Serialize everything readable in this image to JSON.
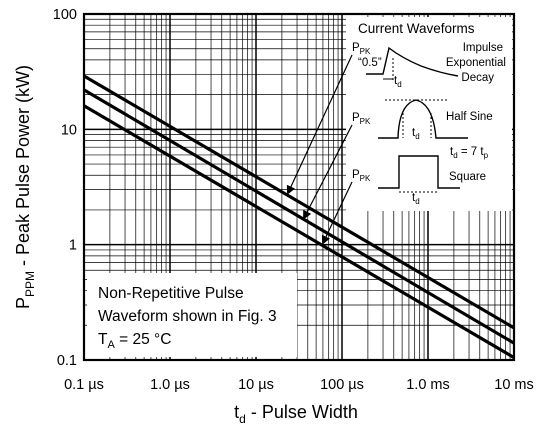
{
  "chart_data": {
    "type": "line",
    "xscale": "log",
    "yscale": "log",
    "xlim": [
      1e-07,
      0.01
    ],
    "ylim": [
      0.1,
      100
    ],
    "grid": true,
    "x_ticks": [
      {
        "value": 1e-07,
        "label": "0.1 µs"
      },
      {
        "value": 1e-06,
        "label": "1.0 µs"
      },
      {
        "value": 1e-05,
        "label": "10 µs"
      },
      {
        "value": 0.0001,
        "label": "100 µs"
      },
      {
        "value": 0.001,
        "label": "1.0 ms"
      },
      {
        "value": 0.01,
        "label": "10 ms"
      }
    ],
    "y_ticks": [
      {
        "value": 0.1,
        "label": "0.1"
      },
      {
        "value": 1,
        "label": "1"
      },
      {
        "value": 10,
        "label": "10"
      },
      {
        "value": 100,
        "label": "100"
      }
    ],
    "xlabel": {
      "main": "t",
      "sub": "d",
      "rest": " - Pulse Width"
    },
    "ylabel": {
      "main": "P",
      "sub": "PPM",
      "rest": " - Peak Pulse Power (kW)"
    },
    "series": [
      {
        "x": [
          1e-07,
          0.01
        ],
        "y": [
          29,
          0.19
        ]
      },
      {
        "x": [
          1e-07,
          0.01
        ],
        "y": [
          22,
          0.14
        ]
      },
      {
        "x": [
          1e-07,
          0.01
        ],
        "y": [
          16,
          0.105
        ]
      }
    ],
    "annotation_box": {
      "line1": "Non-Repetitive Pulse",
      "line2": "Waveform shown in Fig. 3",
      "ta_main": "T",
      "ta_sub": "A",
      "ta_rest": " = 25 °C"
    },
    "inset": {
      "title": "Current Waveforms",
      "ppk_main": "P",
      "ppk_sub": "PK",
      "half_label": "“0.5”",
      "impulse_line1": "Impulse",
      "impulse_line2": "Exponential",
      "impulse_line3": "Decay",
      "td_main": "t",
      "td_sub": "d",
      "halfsine_label": "Half Sine",
      "relation_main": "t",
      "relation_sub": "d",
      "relation_mid": " = 7 t",
      "relation_sub2": "p",
      "square_label": "Square"
    }
  }
}
